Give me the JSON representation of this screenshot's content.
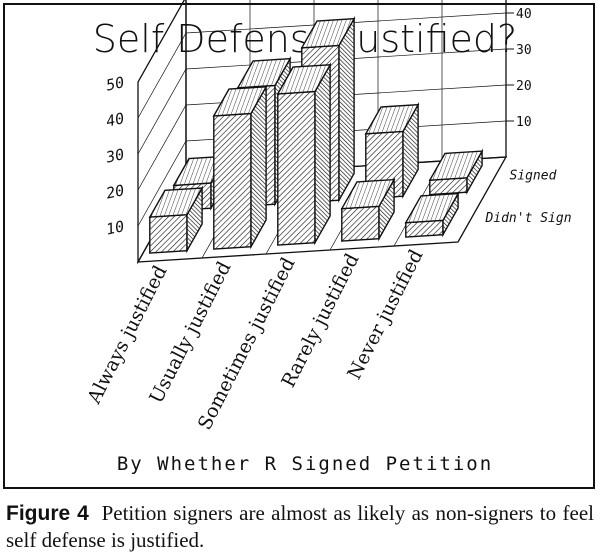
{
  "chart_data": {
    "type": "bar",
    "title": "Self Defense Justified?",
    "xlabel": "By Whether R Signed Petition",
    "categories": [
      "Always justified",
      "Usually justified",
      "Sometimes justified",
      "Rarely justified",
      "Never justified"
    ],
    "series": [
      {
        "name": "Signed",
        "values": [
          7,
          33,
          43,
          18,
          4
        ]
      },
      {
        "name": "Didn't Sign",
        "values": [
          10,
          37,
          42,
          9,
          4
        ]
      }
    ],
    "ylim": [
      0,
      50
    ],
    "yticks": [
      10,
      20,
      30,
      40,
      50
    ],
    "grid": true,
    "legend": "right"
  },
  "caption": {
    "label": "Figure 4",
    "text": "Petition signers are almost as likely as non-signers to feel self defense is justified."
  },
  "colors": {
    "ink": "#111111",
    "paper": "#ffffff"
  }
}
